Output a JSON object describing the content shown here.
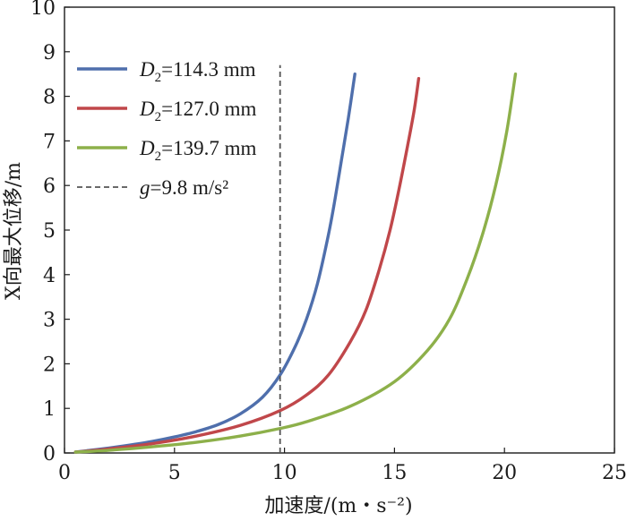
{
  "chart_data": {
    "type": "line",
    "xlabel": "加速度/(m・s⁻²)",
    "ylabel": "X向最大位移/m",
    "xlim": [
      0,
      25
    ],
    "ylim": [
      0,
      10
    ],
    "xticks": [
      "0",
      "5",
      "10",
      "15",
      "20",
      "25"
    ],
    "yticks": [
      "0",
      "1",
      "2",
      "3",
      "4",
      "5",
      "6",
      "7",
      "8",
      "9",
      "10"
    ],
    "grid": false,
    "legend_position": "top-left",
    "series": [
      {
        "name": "D2=114.3 mm",
        "legend_symbol": "D",
        "legend_sub": "2",
        "legend_rest": "=114.3 mm",
        "color": "#4f6fac",
        "dash": "solid",
        "x": [
          0.5,
          1,
          2,
          3,
          4,
          5,
          6,
          7,
          8,
          9,
          9.8,
          10.5,
          11,
          11.5,
          12,
          12.3,
          12.6,
          12.9,
          13.2
        ],
        "y": [
          0.02,
          0.05,
          0.11,
          0.18,
          0.26,
          0.36,
          0.48,
          0.64,
          0.88,
          1.25,
          1.75,
          2.4,
          3.0,
          3.8,
          4.9,
          5.7,
          6.6,
          7.5,
          8.5
        ]
      },
      {
        "name": "D2=127.0 mm",
        "legend_symbol": "D",
        "legend_sub": "2",
        "legend_rest": "=127.0 mm",
        "color": "#c0474a",
        "dash": "solid",
        "x": [
          0.5,
          2,
          4,
          6,
          8,
          9.8,
          11,
          12,
          13,
          13.7,
          14.3,
          14.8,
          15.2,
          15.6,
          15.9,
          16.1
        ],
        "y": [
          0.02,
          0.09,
          0.21,
          0.38,
          0.62,
          0.95,
          1.3,
          1.75,
          2.5,
          3.2,
          4.1,
          5.0,
          5.9,
          6.9,
          7.7,
          8.4
        ]
      },
      {
        "name": "D2=139.7 mm",
        "legend_symbol": "D",
        "legend_sub": "2",
        "legend_rest": "=139.7 mm",
        "color": "#8db04a",
        "dash": "solid",
        "x": [
          0.5,
          2,
          4,
          6,
          8,
          9.8,
          11,
          13,
          15,
          16.5,
          17.5,
          18.3,
          19,
          19.6,
          20.1,
          20.5
        ],
        "y": [
          0.02,
          0.06,
          0.14,
          0.24,
          0.38,
          0.55,
          0.7,
          1.05,
          1.6,
          2.3,
          3.0,
          3.9,
          4.9,
          6.0,
          7.2,
          8.5
        ]
      },
      {
        "name": "g=9.8 m/s²",
        "legend_symbol": "g",
        "legend_sub": "",
        "legend_rest": "=9.8 m/s²",
        "color": "#555555",
        "dash": "dashed",
        "x": [
          9.8,
          9.8
        ],
        "y": [
          0,
          8.7
        ]
      }
    ]
  }
}
